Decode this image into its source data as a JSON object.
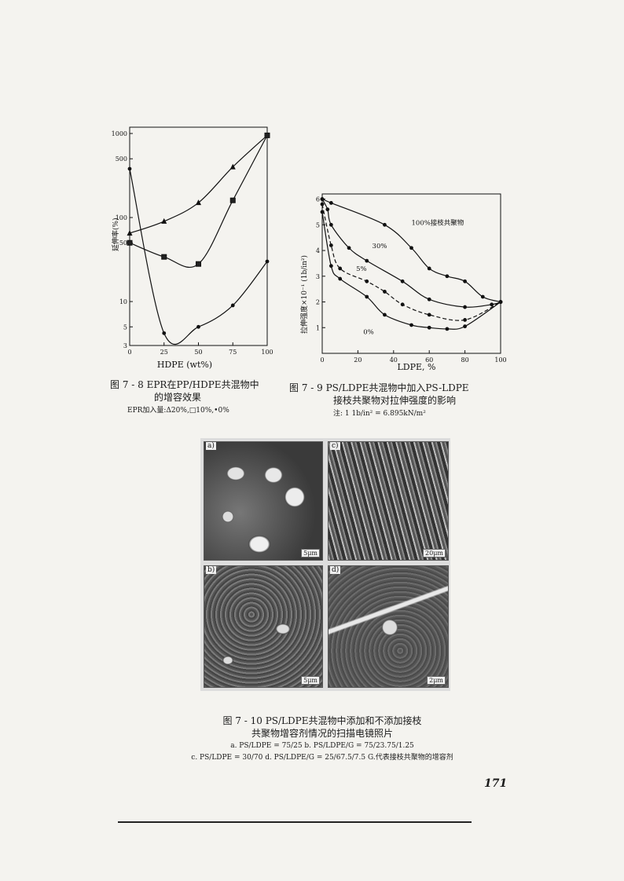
{
  "page_number": "171",
  "fig8": {
    "caption_line1": "图 7 - 8  EPR在PP/HDPE共混物中",
    "caption_line2": "的增容效果",
    "caption_note": "EPR加入量:Δ20%,□10%,•0%",
    "ylabel": "延伸率(%)",
    "xlabel": "HDPE (wt%)",
    "xticks": [
      "0",
      "25",
      "50",
      "75",
      "100"
    ],
    "yticks": [
      "1000",
      "500",
      "100",
      "50",
      "10",
      "5",
      "3"
    ]
  },
  "fig9": {
    "caption_line1": "图 7 - 9  PS/LDPE共混物中加入PS-LDPE",
    "caption_line2": "接枝共聚物对拉伸强度的影响",
    "caption_note": "注: 1 1b/in² = 6.895kN/m²",
    "ylabel": "拉伸强度×10⁻¹ (1b/in²)",
    "xlabel": "LDPE, %",
    "xticks": [
      "0",
      "20",
      "40",
      "60",
      "80",
      "100"
    ],
    "yticks": [
      "1",
      "2",
      "3",
      "4",
      "5",
      "6"
    ],
    "labels": [
      "100%接枝共聚物",
      "30%",
      "5%",
      "0%"
    ]
  },
  "fig10": {
    "caption_line1": "图 7 - 10  PS/LDPE共混物中添加和不添加接枝",
    "caption_line2": "共聚物增容剂情况的扫描电镜照片",
    "caption_line3": "a. PS/LDPE = 75/25   b. PS/LDPE/G = 75/23.75/1.25",
    "caption_line4": "c. PS/LDPE = 30/70   d. PS/LDPE/G = 25/67.5/7.5   G.代表接枝共聚物的增容剂",
    "panels": [
      {
        "label": "a)",
        "scale": "5μm"
      },
      {
        "label": "c)",
        "scale": "20μm"
      },
      {
        "label": "b)",
        "scale": "5μm"
      },
      {
        "label": "d)",
        "scale": "2μm"
      }
    ]
  },
  "chart_data": [
    {
      "type": "line",
      "title": "",
      "xlabel": "HDPE (wt%)",
      "ylabel": "延伸率(%)",
      "xlim": [
        0,
        100
      ],
      "ylim": [
        3,
        1000
      ],
      "yscale": "log",
      "series": [
        {
          "name": "20%",
          "marker": "triangle",
          "x": [
            0,
            25,
            50,
            75,
            100
          ],
          "y": [
            65,
            90,
            150,
            400,
            950
          ]
        },
        {
          "name": "10%",
          "marker": "square",
          "x": [
            0,
            25,
            50,
            75,
            100
          ],
          "y": [
            50,
            34,
            28,
            160,
            950
          ]
        },
        {
          "name": "0%",
          "marker": "dot",
          "x": [
            0,
            25,
            50,
            75,
            100
          ],
          "y": [
            380,
            4.2,
            5,
            9,
            30
          ]
        }
      ]
    },
    {
      "type": "line",
      "title": "",
      "xlabel": "LDPE, %",
      "ylabel": "拉伸强度×10⁻¹ (1b/in²)",
      "xlim": [
        0,
        100
      ],
      "ylim": [
        0,
        6.2
      ],
      "series": [
        {
          "name": "100%接枝共聚物",
          "x": [
            0,
            5,
            35,
            50,
            60,
            70,
            80,
            90,
            100
          ],
          "y": [
            6,
            5.85,
            5,
            4.1,
            3.3,
            3,
            2.8,
            2.2,
            2
          ]
        },
        {
          "name": "30%",
          "x": [
            0,
            3,
            5,
            15,
            25,
            45,
            60,
            80,
            95,
            100
          ],
          "y": [
            6,
            5.6,
            5,
            4.1,
            3.6,
            2.8,
            2.1,
            1.8,
            1.9,
            2
          ]
        },
        {
          "name": "5%",
          "x": [
            0,
            5,
            10,
            25,
            35,
            45,
            60,
            80,
            100
          ],
          "y": [
            5.8,
            4.2,
            3.3,
            2.8,
            2.4,
            1.9,
            1.5,
            1.3,
            2
          ]
        },
        {
          "name": "0%",
          "x": [
            0,
            5,
            10,
            25,
            35,
            50,
            60,
            70,
            80,
            100
          ],
          "y": [
            5.5,
            3.4,
            2.9,
            2.2,
            1.5,
            1.1,
            1.0,
            0.95,
            1.05,
            2
          ]
        }
      ]
    }
  ]
}
